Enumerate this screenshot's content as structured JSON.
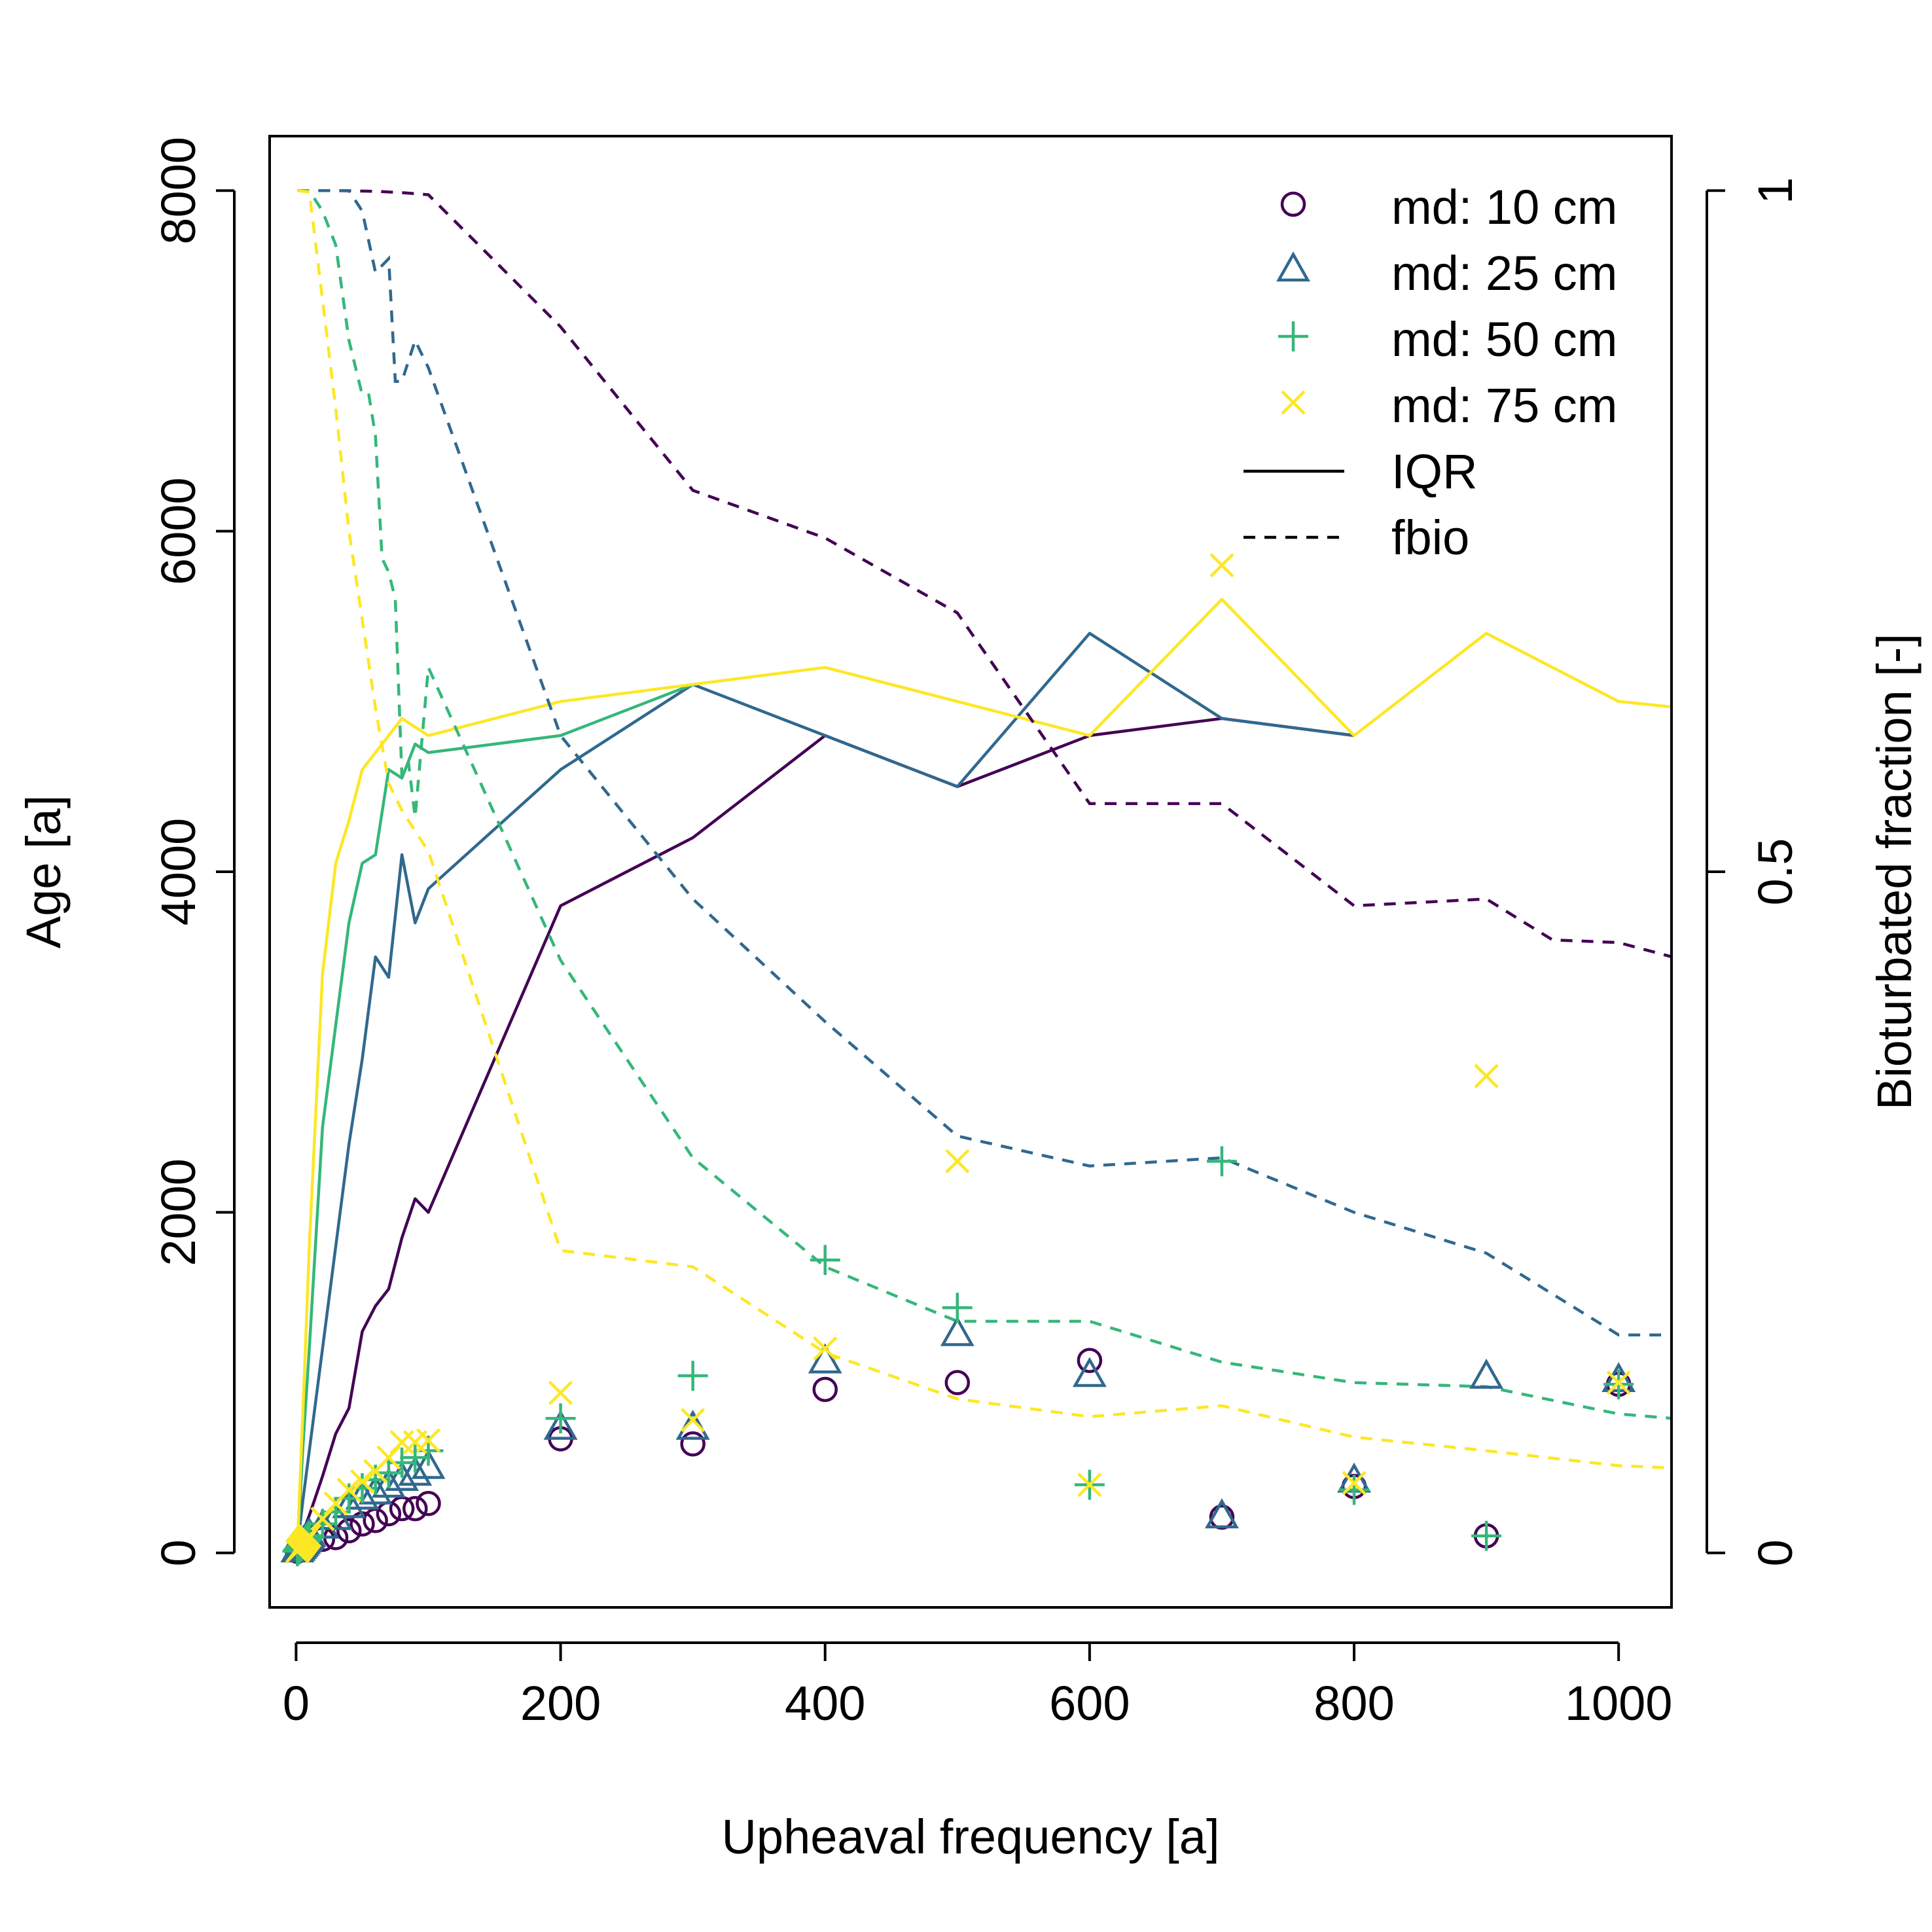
{
  "chart_data": {
    "type": "scatter",
    "xlabel": "Upheaval frequency [a]",
    "ylabel": "Age [a]",
    "y2label": "Bioturbated fraction [-]",
    "xlim": [
      -20,
      1040
    ],
    "ylim": [
      -320,
      8320
    ],
    "y2lim": [
      -0.04,
      1.04
    ],
    "x_ticks": [
      0,
      200,
      400,
      600,
      800,
      1000
    ],
    "x_tick_labels": [
      "0",
      "200",
      "400",
      "600",
      "800",
      "1000"
    ],
    "y_ticks": [
      0,
      2000,
      4000,
      6000,
      8000
    ],
    "y_tick_labels": [
      "0",
      "2000",
      "4000",
      "6000",
      "8000"
    ],
    "y2_ticks": [
      0,
      0.5,
      1
    ],
    "y2_tick_labels": [
      "0",
      "0.5",
      "1"
    ],
    "grid": false,
    "legend_position": "top-right",
    "legend": [
      {
        "label": "md: 10 cm",
        "kind": "marker",
        "marker": "circle",
        "color": "#440154"
      },
      {
        "label": "md: 25 cm",
        "kind": "marker",
        "marker": "triangle",
        "color": "#31688E"
      },
      {
        "label": "md: 50 cm",
        "kind": "marker",
        "marker": "plus",
        "color": "#35B779"
      },
      {
        "label": "md: 75 cm",
        "kind": "marker",
        "marker": "cross",
        "color": "#FDE725"
      },
      {
        "label": "IQR",
        "kind": "line",
        "dash": "solid",
        "color": "#000000"
      },
      {
        "label": "fbio",
        "kind": "line",
        "dash": "dashed",
        "color": "#000000"
      }
    ],
    "x": [
      1,
      2,
      3,
      4,
      5,
      6,
      7,
      8,
      9,
      10,
      20,
      30,
      40,
      50,
      60,
      70,
      80,
      90,
      100,
      200,
      300,
      400,
      500,
      600,
      700,
      800,
      900,
      1000,
      1050
    ],
    "series": [
      {
        "id": "md10",
        "color": "#440154",
        "marker": "circle",
        "points": [
          [
            1,
            10
          ],
          [
            2,
            15
          ],
          [
            3,
            20
          ],
          [
            4,
            25
          ],
          [
            5,
            30
          ],
          [
            6,
            35
          ],
          [
            7,
            40
          ],
          [
            8,
            45
          ],
          [
            9,
            50
          ],
          [
            10,
            55
          ],
          [
            20,
            80
          ],
          [
            30,
            90
          ],
          [
            40,
            130
          ],
          [
            50,
            170
          ],
          [
            60,
            190
          ],
          [
            70,
            230
          ],
          [
            80,
            260
          ],
          [
            90,
            260
          ],
          [
            100,
            290
          ],
          [
            200,
            670
          ],
          [
            300,
            640
          ],
          [
            400,
            960
          ],
          [
            500,
            1000
          ],
          [
            600,
            1130
          ],
          [
            700,
            210
          ],
          [
            800,
            390
          ],
          [
            900,
            100
          ],
          [
            1000,
            990
          ]
        ],
        "iqr": [
          [
            1,
            10
          ],
          [
            3,
            50
          ],
          [
            5,
            120
          ],
          [
            8,
            180
          ],
          [
            10,
            220
          ],
          [
            20,
            450
          ],
          [
            30,
            700
          ],
          [
            40,
            850
          ],
          [
            50,
            1300
          ],
          [
            60,
            1450
          ],
          [
            70,
            1550
          ],
          [
            80,
            1850
          ],
          [
            90,
            2080
          ],
          [
            100,
            2000
          ],
          [
            200,
            3800
          ],
          [
            300,
            4200
          ],
          [
            400,
            4800
          ],
          [
            500,
            4500
          ],
          [
            600,
            4800
          ],
          [
            700,
            4900
          ],
          [
            800,
            4800
          ]
        ],
        "fbio": [
          [
            1,
            1.0
          ],
          [
            30,
            1.0
          ],
          [
            60,
            0.9995
          ],
          [
            80,
            0.9985
          ],
          [
            100,
            0.997
          ],
          [
            200,
            0.9
          ],
          [
            300,
            0.78
          ],
          [
            400,
            0.745
          ],
          [
            500,
            0.69
          ],
          [
            600,
            0.55
          ],
          [
            700,
            0.55
          ],
          [
            800,
            0.475
          ],
          [
            900,
            0.48
          ],
          [
            950,
            0.45
          ],
          [
            1000,
            0.448
          ],
          [
            1050,
            0.435
          ]
        ]
      },
      {
        "id": "md25",
        "color": "#31688E",
        "marker": "triangle",
        "points": [
          [
            1,
            10
          ],
          [
            2,
            20
          ],
          [
            3,
            30
          ],
          [
            4,
            40
          ],
          [
            5,
            50
          ],
          [
            6,
            60
          ],
          [
            7,
            70
          ],
          [
            8,
            80
          ],
          [
            9,
            90
          ],
          [
            10,
            100
          ],
          [
            20,
            150
          ],
          [
            30,
            200
          ],
          [
            40,
            270
          ],
          [
            50,
            320
          ],
          [
            60,
            350
          ],
          [
            70,
            390
          ],
          [
            80,
            430
          ],
          [
            90,
            460
          ],
          [
            100,
            500
          ],
          [
            200,
            730
          ],
          [
            300,
            730
          ],
          [
            400,
            1120
          ],
          [
            500,
            1280
          ],
          [
            600,
            1040
          ],
          [
            700,
            210
          ],
          [
            800,
            420
          ],
          [
            900,
            1030
          ],
          [
            1000,
            1010
          ]
        ],
        "iqr": [
          [
            1,
            30
          ],
          [
            5,
            300
          ],
          [
            10,
            600
          ],
          [
            20,
            1200
          ],
          [
            30,
            1800
          ],
          [
            40,
            2400
          ],
          [
            50,
            2900
          ],
          [
            60,
            3500
          ],
          [
            70,
            3380
          ],
          [
            80,
            4100
          ],
          [
            90,
            3700
          ],
          [
            100,
            3900
          ],
          [
            200,
            4600
          ],
          [
            300,
            5100
          ],
          [
            400,
            4800
          ],
          [
            500,
            4500
          ],
          [
            600,
            5400
          ],
          [
            700,
            4900
          ],
          [
            800,
            4800
          ]
        ],
        "fbio": [
          [
            1,
            1.0
          ],
          [
            40,
            1.0
          ],
          [
            50,
            0.985
          ],
          [
            60,
            0.94
          ],
          [
            70,
            0.95
          ],
          [
            75,
            0.86
          ],
          [
            80,
            0.86
          ],
          [
            90,
            0.89
          ],
          [
            100,
            0.87
          ],
          [
            200,
            0.6
          ],
          [
            300,
            0.48
          ],
          [
            400,
            0.39
          ],
          [
            500,
            0.306
          ],
          [
            600,
            0.284
          ],
          [
            700,
            0.29
          ],
          [
            800,
            0.25
          ],
          [
            900,
            0.22
          ],
          [
            1000,
            0.16
          ],
          [
            1050,
            0.16
          ]
        ]
      },
      {
        "id": "md50",
        "color": "#35B779",
        "marker": "plus",
        "points": [
          [
            1,
            10
          ],
          [
            2,
            20
          ],
          [
            3,
            30
          ],
          [
            4,
            40
          ],
          [
            5,
            50
          ],
          [
            6,
            60
          ],
          [
            7,
            70
          ],
          [
            8,
            80
          ],
          [
            9,
            90
          ],
          [
            10,
            100
          ],
          [
            20,
            170
          ],
          [
            30,
            240
          ],
          [
            40,
            320
          ],
          [
            50,
            380
          ],
          [
            60,
            430
          ],
          [
            70,
            470
          ],
          [
            80,
            530
          ],
          [
            90,
            560
          ],
          [
            100,
            600
          ],
          [
            200,
            790
          ],
          [
            300,
            1040
          ],
          [
            400,
            1720
          ],
          [
            500,
            1440
          ],
          [
            600,
            400
          ],
          [
            700,
            2300
          ],
          [
            800,
            370
          ],
          [
            900,
            100
          ],
          [
            1000,
            990
          ]
        ],
        "iqr": [
          [
            1,
            30
          ],
          [
            5,
            600
          ],
          [
            10,
            1200
          ],
          [
            20,
            2500
          ],
          [
            30,
            3100
          ],
          [
            40,
            3700
          ],
          [
            50,
            4050
          ],
          [
            60,
            4100
          ],
          [
            70,
            4600
          ],
          [
            80,
            4550
          ],
          [
            90,
            4750
          ],
          [
            100,
            4700
          ],
          [
            200,
            4800
          ],
          [
            300,
            5100
          ]
        ],
        "fbio": [
          [
            1,
            1.0
          ],
          [
            10,
            1.0
          ],
          [
            20,
            0.985
          ],
          [
            30,
            0.96
          ],
          [
            40,
            0.89
          ],
          [
            50,
            0.85
          ],
          [
            55,
            0.85
          ],
          [
            60,
            0.82
          ],
          [
            65,
            0.73
          ],
          [
            70,
            0.72
          ],
          [
            75,
            0.7
          ],
          [
            80,
            0.57
          ],
          [
            85,
            0.58
          ],
          [
            90,
            0.54
          ],
          [
            100,
            0.65
          ],
          [
            200,
            0.435
          ],
          [
            300,
            0.29
          ],
          [
            400,
            0.21
          ],
          [
            500,
            0.17
          ],
          [
            600,
            0.17
          ],
          [
            700,
            0.14
          ],
          [
            800,
            0.125
          ],
          [
            900,
            0.122
          ],
          [
            1000,
            0.102
          ],
          [
            1050,
            0.098
          ]
        ]
      },
      {
        "id": "md75",
        "color": "#FDE725",
        "marker": "cross",
        "points": [
          [
            1,
            10
          ],
          [
            2,
            20
          ],
          [
            3,
            30
          ],
          [
            4,
            40
          ],
          [
            5,
            50
          ],
          [
            6,
            60
          ],
          [
            7,
            70
          ],
          [
            8,
            80
          ],
          [
            9,
            90
          ],
          [
            10,
            100
          ],
          [
            20,
            200
          ],
          [
            30,
            290
          ],
          [
            40,
            370
          ],
          [
            50,
            420
          ],
          [
            60,
            480
          ],
          [
            70,
            560
          ],
          [
            80,
            650
          ],
          [
            90,
            650
          ],
          [
            100,
            660
          ],
          [
            200,
            940
          ],
          [
            300,
            780
          ],
          [
            400,
            1200
          ],
          [
            500,
            2300
          ],
          [
            600,
            400
          ],
          [
            700,
            5800
          ],
          [
            800,
            410
          ],
          [
            900,
            2800
          ],
          [
            1000,
            1000
          ]
        ],
        "iqr": [
          [
            1,
            50
          ],
          [
            5,
            800
          ],
          [
            10,
            1800
          ],
          [
            20,
            3400
          ],
          [
            30,
            4050
          ],
          [
            40,
            4300
          ],
          [
            50,
            4600
          ],
          [
            60,
            4700
          ],
          [
            70,
            4800
          ],
          [
            80,
            4900
          ],
          [
            90,
            4850
          ],
          [
            100,
            4800
          ],
          [
            200,
            5000
          ],
          [
            300,
            5100
          ],
          [
            400,
            5200
          ],
          [
            500,
            5000
          ],
          [
            600,
            4800
          ],
          [
            700,
            5600
          ],
          [
            800,
            4800
          ],
          [
            900,
            5400
          ],
          [
            1000,
            5000
          ],
          [
            1050,
            4960
          ]
        ],
        "fbio": [
          [
            1,
            1.0
          ],
          [
            10,
            0.999
          ],
          [
            20,
            0.92
          ],
          [
            30,
            0.84
          ],
          [
            40,
            0.75
          ],
          [
            50,
            0.685
          ],
          [
            60,
            0.62
          ],
          [
            70,
            0.565
          ],
          [
            80,
            0.545
          ],
          [
            100,
            0.515
          ],
          [
            200,
            0.222
          ],
          [
            300,
            0.21
          ],
          [
            400,
            0.147
          ],
          [
            500,
            0.113
          ],
          [
            600,
            0.1
          ],
          [
            700,
            0.108
          ],
          [
            800,
            0.085
          ],
          [
            900,
            0.075
          ],
          [
            1000,
            0.064
          ],
          [
            1050,
            0.062
          ]
        ]
      }
    ]
  }
}
